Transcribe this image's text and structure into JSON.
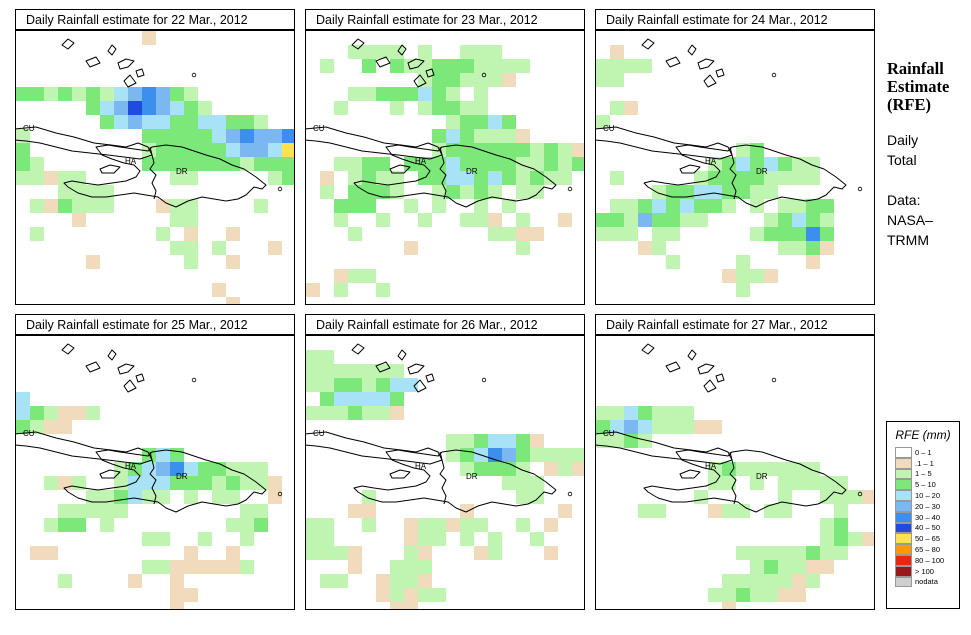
{
  "panels": [
    {
      "title": "Daily Rainfall estimate for  22 Mar., 2012"
    },
    {
      "title": "Daily Rainfall estimate for  23 Mar., 2012"
    },
    {
      "title": "Daily Rainfall estimate for  24 Mar., 2012"
    },
    {
      "title": "Daily Rainfall estimate for  25 Mar., 2012"
    },
    {
      "title": "Daily Rainfall estimate for  26 Mar., 2012"
    },
    {
      "title": "Daily Rainfall estimate for  27 Mar., 2012"
    }
  ],
  "map_labels": {
    "cu": "CU",
    "ha": "HA",
    "dr": "DR"
  },
  "side": {
    "title_line1": "Rainfall",
    "title_line2": "Estimate",
    "title_line3": "(RFE)",
    "daily": "Daily",
    "total": "Total",
    "data_label": "Data:",
    "source1": "NASA–",
    "source2": "TRMM"
  },
  "legend": {
    "title": "RFE (mm)",
    "items": [
      {
        "label": "0 – 1",
        "color": "#ffffff"
      },
      {
        "label": ".1 – 1",
        "color": "#f0dcbc"
      },
      {
        "label": "1 – 5",
        "color": "#bff5b0"
      },
      {
        "label": "5 – 10",
        "color": "#7ce87a"
      },
      {
        "label": "10 – 20",
        "color": "#a8e2f6"
      },
      {
        "label": "20 – 30",
        "color": "#7bb8f2"
      },
      {
        "label": "30 – 40",
        "color": "#3d8fee"
      },
      {
        "label": "40 – 50",
        "color": "#1e4be0"
      },
      {
        "label": "50 – 65",
        "color": "#ffe34c"
      },
      {
        "label": "65 – 80",
        "color": "#ff9900"
      },
      {
        "label": "80 – 100",
        "color": "#e42a0a"
      },
      {
        "label": "> 100",
        "color": "#9a1818"
      },
      {
        "label": "nodata",
        "color": "#cfcfcf"
      }
    ]
  }
}
